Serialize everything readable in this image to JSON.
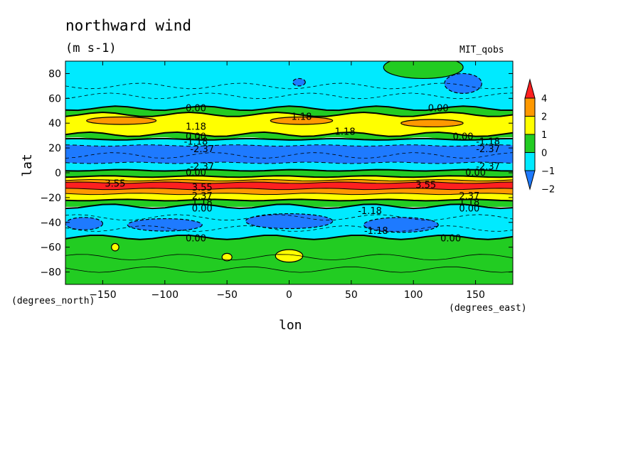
{
  "chart_data": {
    "type": "contour",
    "title": "northward wind",
    "units": "(m s-1)",
    "model_label": "MIT_qobs",
    "xlabel": "lon",
    "ylabel": "lat",
    "x_unit": "(degrees_east)",
    "y_unit": "(degrees_north)",
    "xlim": [
      -180,
      180
    ],
    "ylim": [
      -90,
      90
    ],
    "x_ticks": [
      -150,
      -100,
      -50,
      0,
      50,
      100,
      150
    ],
    "y_ticks": [
      -80,
      -60,
      -40,
      -20,
      0,
      20,
      40,
      60,
      80
    ],
    "colorbar": {
      "levels": [
        -2,
        -1,
        0,
        1,
        2,
        4
      ],
      "level_labels": [
        "-2",
        "-1",
        "0",
        "1",
        "2",
        "4"
      ],
      "colors": [
        "#1e7aff",
        "#00eaff",
        "#22cc22",
        "#ffff00",
        "#ff9900",
        "#ff2020"
      ]
    },
    "lat_bands": [
      {
        "lat_top": 90,
        "lat_bottom": 52,
        "level": -1
      },
      {
        "lat_top": 52,
        "lat_bottom": 47,
        "level": 0
      },
      {
        "lat_top": 47,
        "lat_bottom": 31,
        "level": 1
      },
      {
        "lat_top": 31,
        "lat_bottom": 27,
        "level": 0
      },
      {
        "lat_top": 27,
        "lat_bottom": 22,
        "level": -1
      },
      {
        "lat_top": 22,
        "lat_bottom": 8,
        "level": -2
      },
      {
        "lat_top": 8,
        "lat_bottom": 2,
        "level": -1
      },
      {
        "lat_top": 2,
        "lat_bottom": -3,
        "level": 0
      },
      {
        "lat_top": -3,
        "lat_bottom": -6,
        "level": 1
      },
      {
        "lat_top": -6,
        "lat_bottom": -8,
        "level": 2
      },
      {
        "lat_top": -8,
        "lat_bottom": -13,
        "level": 4
      },
      {
        "lat_top": -13,
        "lat_bottom": -17,
        "level": 2
      },
      {
        "lat_top": -17,
        "lat_bottom": -22,
        "level": 1
      },
      {
        "lat_top": -22,
        "lat_bottom": -27,
        "level": 0
      },
      {
        "lat_top": -27,
        "lat_bottom": -52,
        "level": -1
      },
      {
        "lat_top": -52,
        "lat_bottom": -90,
        "level": 0
      }
    ],
    "blobs": [
      {
        "lon": -135,
        "lat": 42,
        "rx": 28,
        "ry": 3,
        "level": 2
      },
      {
        "lon": 10,
        "lat": 42,
        "rx": 25,
        "ry": 3,
        "level": 2
      },
      {
        "lon": 115,
        "lat": 40,
        "rx": 25,
        "ry": 3,
        "level": 2
      },
      {
        "lon": -165,
        "lat": -41,
        "rx": 15,
        "ry": 5,
        "level": -2
      },
      {
        "lon": -100,
        "lat": -42,
        "rx": 30,
        "ry": 5,
        "level": -2
      },
      {
        "lon": 0,
        "lat": -39,
        "rx": 35,
        "ry": 6,
        "level": -2
      },
      {
        "lon": 90,
        "lat": -42,
        "rx": 30,
        "ry": 6,
        "level": -2
      },
      {
        "lon": 140,
        "lat": 72,
        "rx": 15,
        "ry": 8,
        "level": -2
      },
      {
        "lon": 8,
        "lat": 73,
        "rx": 5,
        "ry": 3,
        "level": -2
      },
      {
        "lon": 108,
        "lat": 85,
        "rx": 32,
        "ry": 9,
        "level": 0
      },
      {
        "lon": 0,
        "lat": -67,
        "rx": 11,
        "ry": 5,
        "level": 1
      },
      {
        "lon": -50,
        "lat": -68,
        "rx": 4,
        "ry": 3,
        "level": 1
      },
      {
        "lon": -140,
        "lat": -60,
        "rx": 3,
        "ry": 3,
        "level": 1
      }
    ],
    "contour_labels": [
      {
        "text": "0.00",
        "lon": -75,
        "lat": 52
      },
      {
        "text": "0.00",
        "lon": 120,
        "lat": 52
      },
      {
        "text": "1.18",
        "lon": 10,
        "lat": 45
      },
      {
        "text": "1.18",
        "lon": -75,
        "lat": 37
      },
      {
        "text": "1.18",
        "lon": 45,
        "lat": 33
      },
      {
        "text": "0.00",
        "lon": -75,
        "lat": 29
      },
      {
        "text": "0.00",
        "lon": 140,
        "lat": 29
      },
      {
        "text": "-1.18",
        "lon": -75,
        "lat": 25
      },
      {
        "text": "-1.18",
        "lon": 160,
        "lat": 25
      },
      {
        "text": "-2.37",
        "lon": -70,
        "lat": 19
      },
      {
        "text": "-2.37",
        "lon": 160,
        "lat": 19
      },
      {
        "text": "-2.37",
        "lon": -70,
        "lat": 5
      },
      {
        "text": "-2.37",
        "lon": 160,
        "lat": 5
      },
      {
        "text": "0.00",
        "lon": -75,
        "lat": 0
      },
      {
        "text": "0.00",
        "lon": 150,
        "lat": 0
      },
      {
        "text": "3.55",
        "lon": -140,
        "lat": -9
      },
      {
        "text": "3.55",
        "lon": 110,
        "lat": -10
      },
      {
        "text": "3.55",
        "lon": -70,
        "lat": -12
      },
      {
        "text": "2.37",
        "lon": -70,
        "lat": -19
      },
      {
        "text": "2.37",
        "lon": 145,
        "lat": -19
      },
      {
        "text": "1.18",
        "lon": -70,
        "lat": -24
      },
      {
        "text": "1.18",
        "lon": 145,
        "lat": -24
      },
      {
        "text": "0.00",
        "lon": -70,
        "lat": -29
      },
      {
        "text": "0.00",
        "lon": 145,
        "lat": -29
      },
      {
        "text": "-1.18",
        "lon": 65,
        "lat": -31
      },
      {
        "text": "-1.18",
        "lon": 70,
        "lat": -47
      },
      {
        "text": "0.00",
        "lon": -75,
        "lat": -53
      },
      {
        "text": "0.00",
        "lon": 130,
        "lat": -53
      }
    ]
  }
}
